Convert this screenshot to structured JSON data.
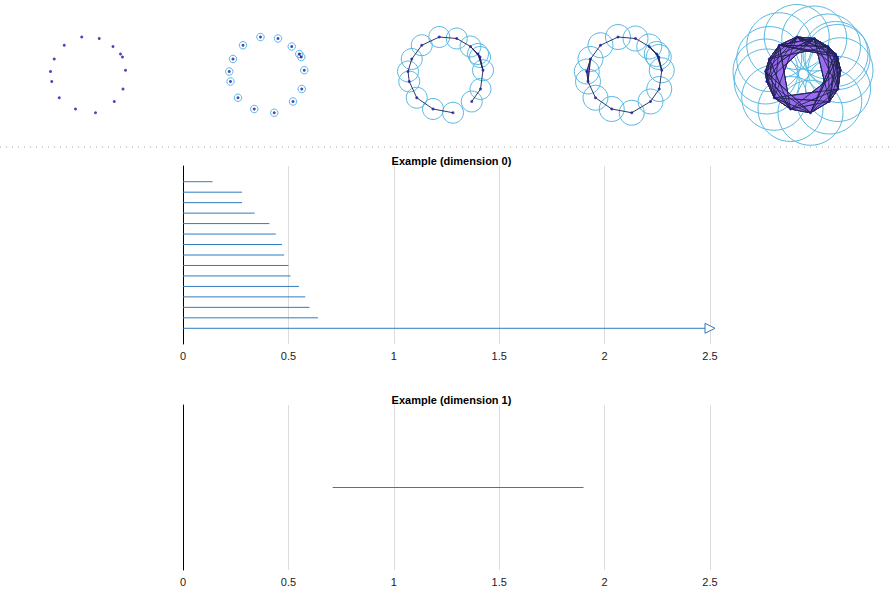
{
  "chart_data": [
    {
      "type": "filtration",
      "points": [
        [
          -0.25,
          1.48
        ],
        [
          0.45,
          1.42
        ],
        [
          -0.95,
          1.15
        ],
        [
          1.0,
          1.1
        ],
        [
          1.3,
          0.8
        ],
        [
          -1.35,
          0.6
        ],
        [
          1.5,
          0.15
        ],
        [
          -1.45,
          -0.3
        ],
        [
          1.4,
          -0.6
        ],
        [
          -1.15,
          -0.95
        ],
        [
          1.05,
          -1.1
        ],
        [
          -0.5,
          -1.4
        ],
        [
          0.3,
          -1.55
        ],
        [
          1.38,
          0.68
        ],
        [
          -1.5,
          0.1
        ]
      ],
      "radii": [
        0,
        0.15,
        0.42,
        0.5,
        1.3
      ],
      "xlim": [
        -2.8,
        2.8
      ],
      "ylim": [
        -2.8,
        2.8
      ],
      "color": "#1c1ca8",
      "tick_labels": false
    },
    {
      "type": "barcode",
      "title": "Example (dimension 0)",
      "births": [
        0,
        0,
        0,
        0,
        0,
        0,
        0,
        0,
        0,
        0,
        0,
        0,
        0,
        0,
        0
      ],
      "deaths": [
        0.14,
        0.28,
        0.28,
        0.34,
        0.41,
        0.44,
        0.47,
        0.48,
        0.5,
        0.51,
        0.55,
        0.58,
        0.6,
        0.64,
        null
      ],
      "xlim": [
        0,
        2.5
      ],
      "xticks": [
        0,
        0.5,
        1,
        1.5,
        2,
        2.5
      ],
      "grid": true,
      "tick_labels": "x",
      "color": "#2f7bbd"
    },
    {
      "type": "barcode",
      "title": "Example (dimension 1)",
      "births": [
        0.71
      ],
      "deaths": [
        1.9
      ],
      "xlim": [
        0,
        2.5
      ],
      "xticks": [
        0,
        0.5,
        1,
        1.5,
        2,
        2.5
      ],
      "grid": true,
      "tick_labels": "x",
      "color": "#2f7bbd"
    }
  ]
}
